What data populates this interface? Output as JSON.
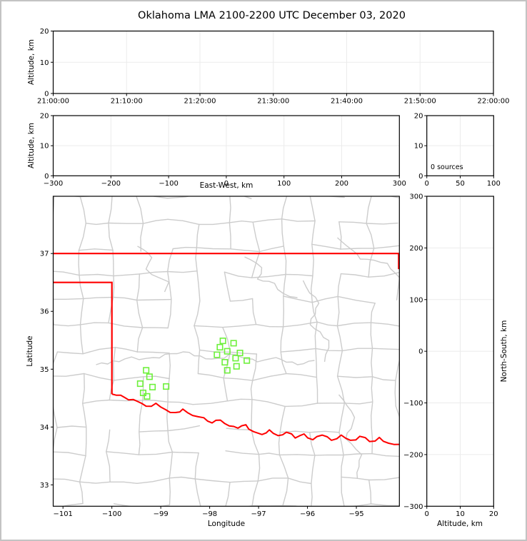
{
  "title": "Oklahoma LMA 2100-2200 UTC December 03, 2020",
  "colors": {
    "state_boundary": "#ff0000",
    "county_line": "#cccccc",
    "station_marker": "#6ef03c",
    "gridline": "#ebebeb",
    "spine": "#000000",
    "background": "#ffffff",
    "frame": "#c3c3c3",
    "text": "#000000"
  },
  "labels": {
    "time_altitude_ylabel": "Altitude, km",
    "ew_altitude_ylabel": "Altitude, km",
    "ew_xlabel": "East-West, km",
    "map_ylabel": "Latitude",
    "map_xlabel": "Longitude",
    "ns_ylabel": "North-South, km",
    "ns_xlabel": "Altitude, km",
    "histogram_annotation": "0 sources"
  },
  "chart_data": [
    {
      "panel": "time_height",
      "type": "scatter",
      "title": "Oklahoma LMA 2100-2200 UTC December 03, 2020",
      "ylabel": "Altitude, km",
      "x_ticks": {
        "labels": [
          "21:00:00",
          "21:10:00",
          "21:20:00",
          "21:30:00",
          "21:40:00",
          "21:50:00",
          "22:00:00"
        ]
      },
      "ylim": [
        0,
        20
      ],
      "y_ticks": {
        "values": [
          0,
          10,
          20
        ],
        "labels": [
          "0",
          "10",
          "20"
        ]
      },
      "points": []
    },
    {
      "panel": "east_west_height",
      "type": "scatter",
      "xlabel": "East-West, km",
      "ylabel": "Altitude, km",
      "xlim": [
        -300,
        300
      ],
      "x_ticks": {
        "values": [
          -300,
          -200,
          -100,
          0,
          100,
          200,
          300
        ],
        "labels": [
          "−300",
          "−200",
          "−100",
          "0",
          "100",
          "200",
          "300"
        ]
      },
      "ylim": [
        0,
        20
      ],
      "y_ticks": {
        "values": [
          0,
          10,
          20
        ],
        "labels": [
          "0",
          "10",
          "20"
        ]
      },
      "points": []
    },
    {
      "panel": "source_histogram",
      "type": "histogram",
      "annotation": "0 sources",
      "xlim": [
        0,
        100
      ],
      "x_ticks": {
        "values": [
          0,
          50,
          100
        ],
        "labels": [
          "0",
          "50",
          "100"
        ]
      },
      "ylim": [
        0,
        20
      ],
      "y_ticks": {
        "values": [
          0,
          10,
          20
        ],
        "labels": [
          "0",
          "10",
          "20"
        ]
      },
      "counts": []
    },
    {
      "panel": "plan_view_map",
      "type": "scatter",
      "xlabel": "Longitude",
      "ylabel": "Latitude",
      "xlim": [
        -101.2,
        -94.12
      ],
      "ylim": [
        32.63,
        37.99
      ],
      "x_ticks": {
        "values": [
          -101,
          -100,
          -99,
          -98,
          -97,
          -96,
          -95
        ],
        "labels": [
          "−101",
          "−100",
          "−99",
          "−98",
          "−97",
          "−96",
          "−95"
        ]
      },
      "y_ticks": {
        "values": [
          33,
          34,
          35,
          36,
          37
        ],
        "labels": [
          "33",
          "34",
          "35",
          "36",
          "37"
        ]
      },
      "stations": [
        [
          -97.73,
          35.49
        ],
        [
          -97.51,
          35.45
        ],
        [
          -97.79,
          35.38
        ],
        [
          -97.64,
          35.31
        ],
        [
          -97.85,
          35.25
        ],
        [
          -97.38,
          35.28
        ],
        [
          -97.47,
          35.19
        ],
        [
          -97.24,
          35.15
        ],
        [
          -97.69,
          35.12
        ],
        [
          -97.45,
          35.05
        ],
        [
          -97.64,
          34.98
        ],
        [
          -99.3,
          34.98
        ],
        [
          -99.23,
          34.87
        ],
        [
          -99.42,
          34.75
        ],
        [
          -99.17,
          34.69
        ],
        [
          -98.89,
          34.7
        ],
        [
          -99.36,
          34.59
        ],
        [
          -99.28,
          34.53
        ]
      ],
      "state_boundary": [
        [
          [
            -101.2,
            37.0
          ],
          [
            -94.12,
            37.0
          ]
        ],
        [
          [
            -94.135,
            37.0
          ],
          [
            -94.135,
            36.73
          ]
        ],
        [
          [
            -101.2,
            36.5
          ],
          [
            -100.0,
            36.5
          ],
          [
            -100.0,
            34.57
          ]
        ]
      ],
      "red_river": [
        [
          -100.0,
          34.57
        ],
        [
          -99.82,
          34.55
        ],
        [
          -99.66,
          34.47
        ],
        [
          -99.47,
          34.44
        ],
        [
          -99.3,
          34.36
        ],
        [
          -99.1,
          34.41
        ],
        [
          -98.9,
          34.3
        ],
        [
          -98.7,
          34.25
        ],
        [
          -98.55,
          34.31
        ],
        [
          -98.35,
          34.2
        ],
        [
          -98.12,
          34.16
        ],
        [
          -97.95,
          34.07
        ],
        [
          -97.78,
          34.12
        ],
        [
          -97.6,
          34.02
        ],
        [
          -97.42,
          33.98
        ],
        [
          -97.26,
          34.04
        ],
        [
          -97.1,
          33.92
        ],
        [
          -96.93,
          33.87
        ],
        [
          -96.78,
          33.95
        ],
        [
          -96.6,
          33.85
        ],
        [
          -96.43,
          33.91
        ],
        [
          -96.25,
          33.81
        ],
        [
          -96.07,
          33.88
        ],
        [
          -95.89,
          33.78
        ],
        [
          -95.7,
          33.86
        ],
        [
          -95.51,
          33.77
        ],
        [
          -95.31,
          33.86
        ],
        [
          -95.12,
          33.77
        ],
        [
          -94.93,
          33.84
        ],
        [
          -94.73,
          33.75
        ],
        [
          -94.53,
          33.82
        ],
        [
          -94.34,
          33.72
        ],
        [
          -94.12,
          33.7
        ]
      ]
    },
    {
      "panel": "north_south_height",
      "type": "scatter",
      "xlabel": "Altitude, km",
      "ylabel": "North-South, km",
      "xlim": [
        0,
        20
      ],
      "x_ticks": {
        "values": [
          0,
          10,
          20
        ],
        "labels": [
          "0",
          "10",
          "20"
        ]
      },
      "ylim": [
        -300,
        300
      ],
      "y_ticks": {
        "values": [
          300,
          200,
          100,
          0,
          -100,
          -200,
          -300
        ],
        "labels": [
          "300",
          "200",
          "100",
          "0",
          "−100",
          "−200",
          "−300"
        ]
      },
      "points": []
    }
  ]
}
